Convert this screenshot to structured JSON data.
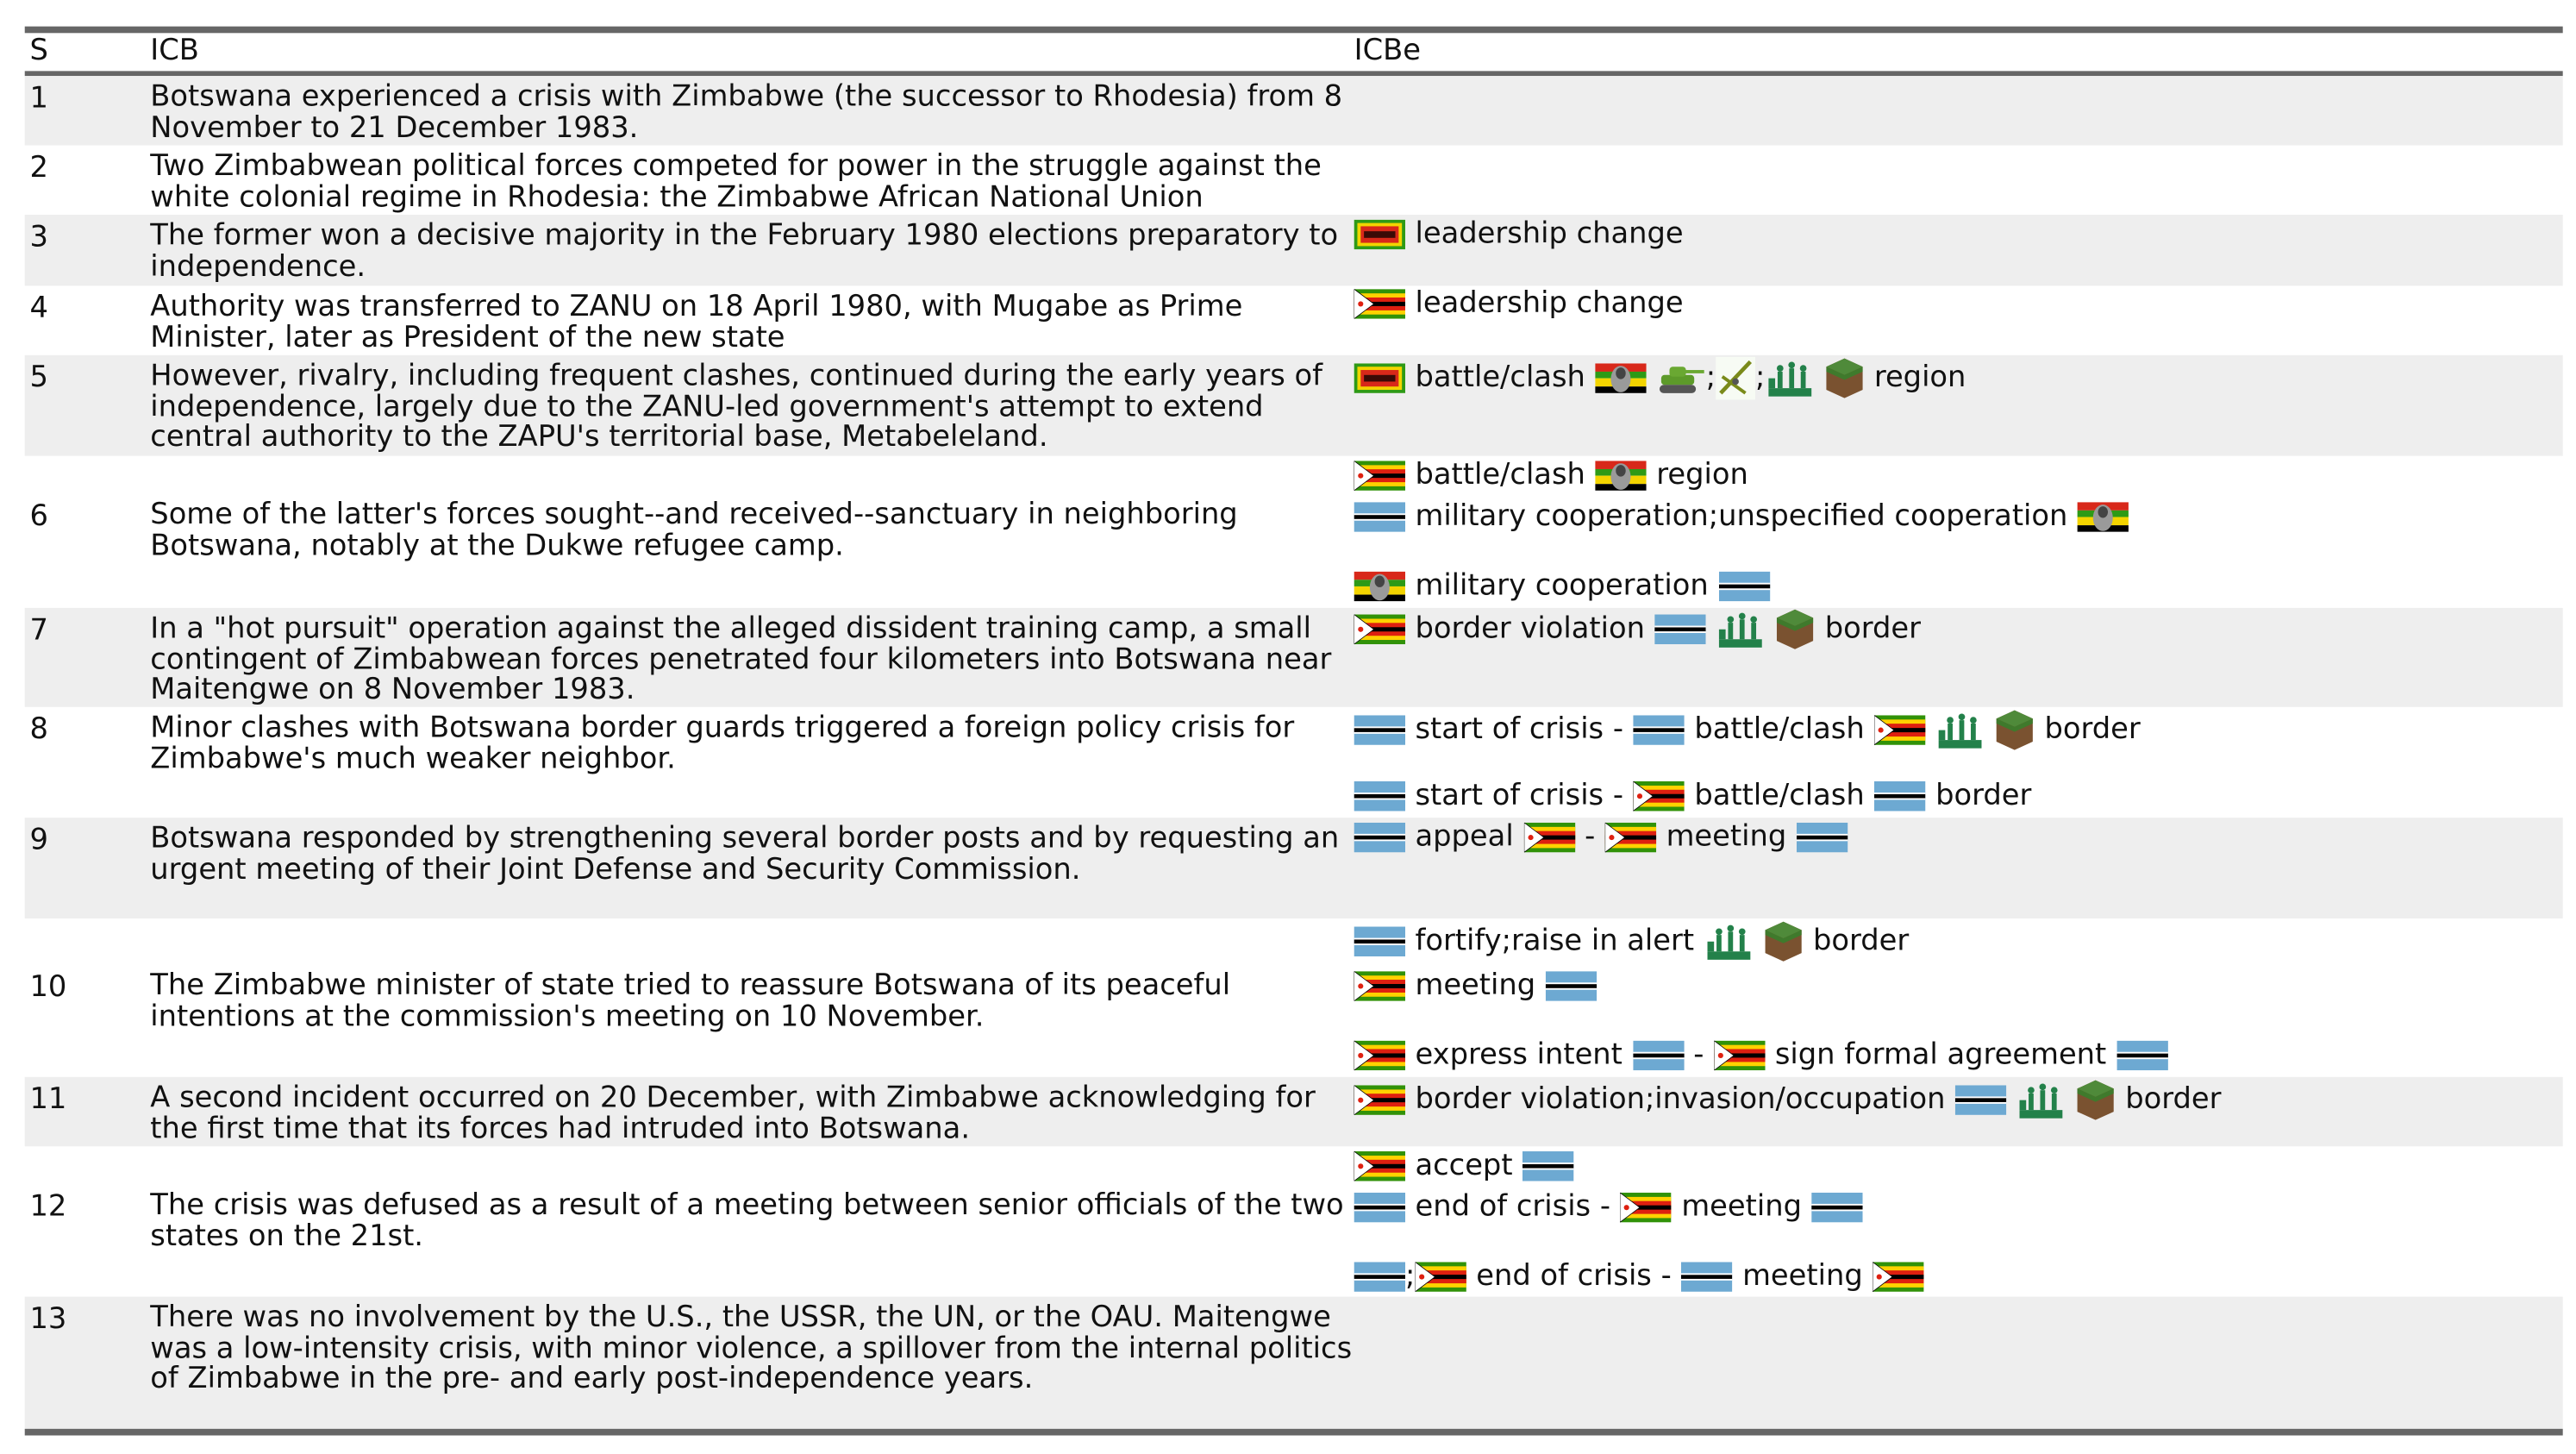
{
  "header": {
    "s": "S",
    "icb": "ICB",
    "icbe": "ICBe"
  },
  "colors": {
    "shade": "#eeeeee",
    "rule": "#666666",
    "botswana_blue": "#6DA9D2"
  },
  "rows": [
    {
      "s": "1",
      "icb": "Botswana experienced a crisis with Zimbabwe (the successor to Rhodesia) from 8 November to 21 December 1983.",
      "icbe": []
    },
    {
      "s": "2",
      "icb": "Two Zimbabwean political forces competed for power in the struggle against the white colonial regime in Rhodesia: the Zimbabwe African National Union",
      "icbe": []
    },
    {
      "s": "3",
      "icb": "The former won a decisive majority in the February 1980 elections preparatory to independence.",
      "icbe": [
        [
          {
            "icon": "zanu-flag"
          },
          {
            "text": "leadership change"
          }
        ]
      ]
    },
    {
      "s": "4",
      "icb": "Authority was transferred to ZANU on 18 April 1980, with Mugabe as Prime Minister, later as President of the new state",
      "icbe": [
        [
          {
            "icon": "zimbabwe-flag"
          },
          {
            "text": "leadership change"
          }
        ]
      ]
    },
    {
      "s": "5",
      "icb": "However, rivalry, including frequent clashes, continued during the early years of independence, largely due to the ZANU-led government's attempt to extend central authority to the ZAPU's territorial base, Metabeleland.",
      "icbe": [
        [
          {
            "icon": "zanu-flag"
          },
          {
            "text": "battle/clash"
          },
          {
            "icon": "zapu-flag"
          },
          {
            "icon": "tank"
          },
          {
            "text": ";",
            "tight": true
          },
          {
            "icon": "artillery"
          },
          {
            "text": ";",
            "tight": true
          },
          {
            "icon": "soldiers"
          },
          {
            "icon": "territory-cube"
          },
          {
            "text": "region"
          }
        ]
      ]
    },
    {
      "s": "6",
      "icb": "Some of the latter's forces sought--and received--sanctuary in neighboring Botswana, notably at the Dukwe refugee camp.",
      "icbe": [
        [
          {
            "icon": "zimbabwe-flag"
          },
          {
            "text": "battle/clash"
          },
          {
            "icon": "zapu-flag"
          },
          {
            "text": "region"
          }
        ],
        [
          {
            "icon": "botswana-flag"
          },
          {
            "text": "military cooperation;unspecified cooperation"
          },
          {
            "icon": "zapu-flag"
          }
        ],
        [
          {
            "icon": "zapu-flag"
          },
          {
            "text": "military cooperation"
          },
          {
            "icon": "botswana-flag"
          }
        ]
      ]
    },
    {
      "s": "7",
      "icb": "In a \"hot pursuit\" operation against the alleged dissident training camp, a small contingent of Zimbabwean forces penetrated four kilometers into Botswana near Maitengwe on 8 November 1983.",
      "icbe": [
        [
          {
            "icon": "zimbabwe-flag"
          },
          {
            "text": "border violation"
          },
          {
            "icon": "botswana-flag"
          },
          {
            "icon": "soldiers"
          },
          {
            "icon": "territory-cube"
          },
          {
            "text": "border"
          }
        ]
      ]
    },
    {
      "s": "8",
      "icb": "Minor clashes with Botswana border guards triggered a foreign policy crisis for Zimbabwe's much weaker neighbor.",
      "icbe": [
        [
          {
            "icon": "botswana-flag"
          },
          {
            "text": "start of crisis -"
          },
          {
            "icon": "botswana-flag"
          },
          {
            "text": "battle/clash"
          },
          {
            "icon": "zimbabwe-flag"
          },
          {
            "icon": "soldiers"
          },
          {
            "icon": "territory-cube"
          },
          {
            "text": "border"
          }
        ],
        [
          {
            "icon": "botswana-flag"
          },
          {
            "text": "start of crisis -"
          },
          {
            "icon": "zimbabwe-flag"
          },
          {
            "text": "battle/clash"
          },
          {
            "icon": "botswana-flag"
          },
          {
            "text": "border"
          }
        ]
      ]
    },
    {
      "s": "9",
      "icb": "Botswana responded by strengthening several border posts and by requesting an urgent meeting of their Joint Defense and Security Commission.",
      "icbe": [
        [
          {
            "icon": "botswana-flag"
          },
          {
            "text": "appeal"
          },
          {
            "icon": "zimbabwe-flag"
          },
          {
            "text": "-"
          },
          {
            "icon": "zimbabwe-flag"
          },
          {
            "text": "meeting"
          },
          {
            "icon": "botswana-flag"
          }
        ]
      ]
    },
    {
      "s": "10",
      "icb": "The Zimbabwe minister of state tried to reassure Botswana of its peaceful intentions at the commission's meeting on 10 November.",
      "icbe": [
        [
          {
            "icon": "botswana-flag"
          },
          {
            "text": "fortify;raise in alert"
          },
          {
            "icon": "soldiers"
          },
          {
            "icon": "territory-cube"
          },
          {
            "text": "border"
          }
        ],
        [
          {
            "icon": "zimbabwe-flag"
          },
          {
            "text": "meeting"
          },
          {
            "icon": "botswana-flag"
          }
        ],
        [
          {
            "icon": "zimbabwe-flag"
          },
          {
            "text": "express intent"
          },
          {
            "icon": "botswana-flag"
          },
          {
            "text": "-"
          },
          {
            "icon": "zimbabwe-flag"
          },
          {
            "text": "sign formal agreement"
          },
          {
            "icon": "botswana-flag"
          }
        ]
      ]
    },
    {
      "s": "11",
      "icb": "A second incident occurred on 20 December, with Zimbabwe acknowledging for the first time that its forces had intruded into Botswana.",
      "icbe": [
        [
          {
            "icon": "zimbabwe-flag"
          },
          {
            "text": "border violation;invasion/occupation"
          },
          {
            "icon": "botswana-flag"
          },
          {
            "icon": "soldiers"
          },
          {
            "icon": "territory-cube"
          },
          {
            "text": "border"
          }
        ]
      ]
    },
    {
      "s": "12",
      "icb": "The crisis was defused as a result of a meeting between senior officials of the two states on the 21st.",
      "icbe": [
        [
          {
            "icon": "zimbabwe-flag"
          },
          {
            "text": "accept"
          },
          {
            "icon": "botswana-flag"
          }
        ],
        [
          {
            "icon": "botswana-flag"
          },
          {
            "text": "end of crisis -"
          },
          {
            "icon": "zimbabwe-flag"
          },
          {
            "text": "meeting"
          },
          {
            "icon": "botswana-flag"
          }
        ],
        [
          {
            "icon": "botswana-flag"
          },
          {
            "text": ";",
            "tight": true
          },
          {
            "icon": "zimbabwe-flag"
          },
          {
            "text": "end of crisis -"
          },
          {
            "icon": "botswana-flag"
          },
          {
            "text": "meeting"
          },
          {
            "icon": "zimbabwe-flag"
          }
        ]
      ]
    },
    {
      "s": "13",
      "icb": "There was no involvement by the U.S., the USSR, the UN, or the OAU. Maitengwe was a low-intensity crisis, with minor violence, a spillover from the internal politics of Zimbabwe in the pre- and early post-independence years.",
      "icbe": []
    }
  ]
}
